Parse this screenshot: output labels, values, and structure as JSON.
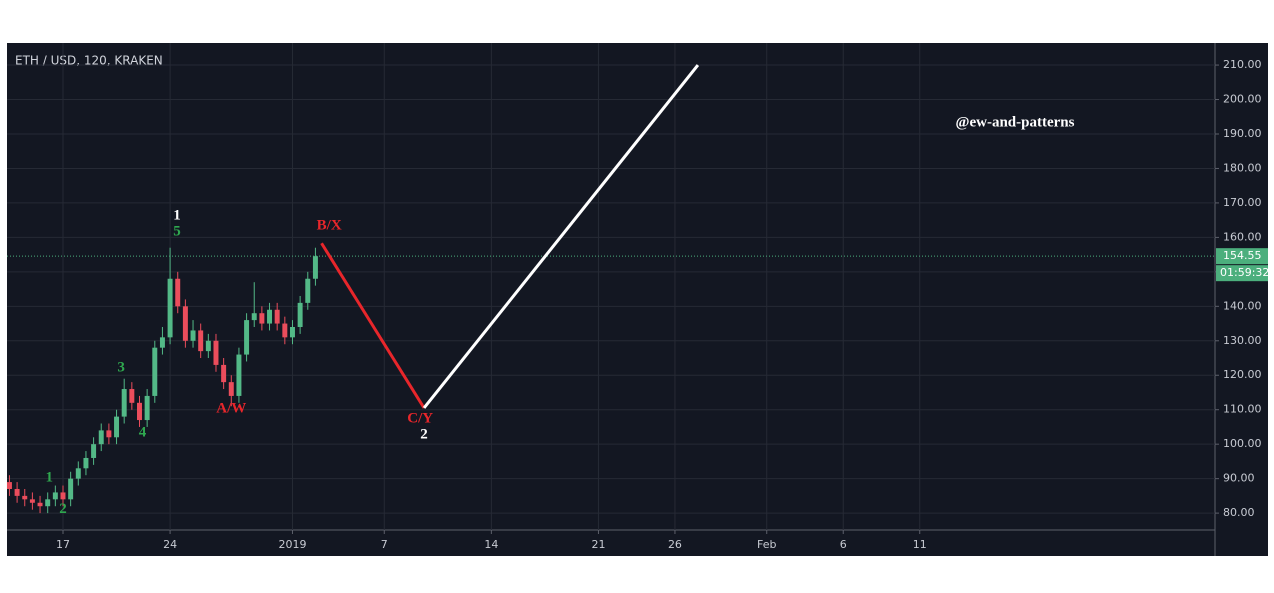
{
  "chart_data": {
    "type": "candlestick",
    "title": "ETH / USD, 120, KRAKEN",
    "watermark": "@ew-and-patterns",
    "xlim": [
      -3.66,
      75.3
    ],
    "ylim": [
      75.1,
      216.4
    ],
    "xticks": [
      {
        "value": 0,
        "label": "17"
      },
      {
        "value": 7,
        "label": "24"
      },
      {
        "value": 15,
        "label": "2019"
      },
      {
        "value": 21,
        "label": "7"
      },
      {
        "value": 28,
        "label": "14"
      },
      {
        "value": 35,
        "label": "21"
      },
      {
        "value": 40,
        "label": "26"
      },
      {
        "value": 46,
        "label": "Feb"
      },
      {
        "value": 51,
        "label": "6"
      },
      {
        "value": 56,
        "label": "11"
      }
    ],
    "yticks": [
      {
        "value": 80,
        "label": "80.00"
      },
      {
        "value": 90,
        "label": "90.00"
      },
      {
        "value": 100,
        "label": "100.00"
      },
      {
        "value": 110,
        "label": "110.00"
      },
      {
        "value": 120,
        "label": "120.00"
      },
      {
        "value": 130,
        "label": "130.00"
      },
      {
        "value": 140,
        "label": "140.00"
      },
      {
        "value": 150,
        "label": "150.00"
      },
      {
        "value": 160,
        "label": "160.00"
      },
      {
        "value": 170,
        "label": "170.00"
      },
      {
        "value": 180,
        "label": "180.00"
      },
      {
        "value": 190,
        "label": "190.00"
      },
      {
        "value": 200,
        "label": "200.00"
      },
      {
        "value": 210,
        "label": "210.00"
      }
    ],
    "grid": true,
    "up_color": "#53b987",
    "down_color": "#eb4d5c",
    "x": [
      -3.5,
      -3,
      -2.5,
      -2,
      -1.5,
      -1,
      -0.5,
      0,
      0.5,
      1,
      1.5,
      2,
      2.5,
      3,
      3.5,
      4,
      4.5,
      5,
      5.5,
      6,
      6.5,
      7,
      7.5,
      8,
      8.5,
      9,
      9.5,
      10,
      10.5,
      11,
      11.5,
      12,
      12.5,
      13,
      13.5,
      14,
      14.5,
      15,
      15.5,
      16,
      16.5
    ],
    "open": [
      89,
      87,
      85,
      84,
      83,
      82,
      84,
      86,
      84,
      90,
      93,
      96,
      100,
      104,
      102,
      108,
      116,
      112,
      107,
      114,
      128,
      131,
      148,
      140,
      130,
      133,
      127,
      130,
      123,
      118,
      114,
      126,
      136,
      138,
      135,
      139,
      135,
      131,
      134,
      141,
      148
    ],
    "high": [
      91,
      89,
      87,
      86,
      85,
      86,
      88,
      88,
      92,
      95,
      98,
      102,
      106,
      106,
      110,
      119,
      118,
      114,
      116,
      130,
      134,
      157,
      150,
      142,
      136,
      135,
      132,
      132,
      125,
      120,
      128,
      138,
      147,
      140,
      141,
      141,
      137,
      136,
      143,
      150,
      157
    ],
    "low": [
      85,
      83,
      82,
      81,
      80,
      80,
      82,
      82,
      82,
      88,
      91,
      94,
      98,
      100,
      100,
      106,
      110,
      105,
      105,
      112,
      126,
      129,
      138,
      128,
      128,
      125,
      125,
      121,
      116,
      111,
      112,
      124,
      134,
      133,
      133,
      133,
      129,
      129,
      132,
      139,
      146
    ],
    "close": [
      87,
      85,
      84,
      83,
      82,
      84,
      86,
      84,
      90,
      93,
      96,
      100,
      104,
      102,
      108,
      116,
      112,
      107,
      114,
      128,
      131,
      148,
      140,
      130,
      133,
      127,
      130,
      123,
      118,
      114,
      126,
      136,
      138,
      135,
      139,
      135,
      131,
      134,
      141,
      148,
      154.55
    ],
    "last_price": {
      "value": 154.55,
      "label": "154.55",
      "timer": "01:59:32",
      "color": "#4caf7d"
    },
    "projection": [
      {
        "name": "B/X-C/Y",
        "color": "#e8262b",
        "x": [
          16.9,
          23.6
        ],
        "y": [
          158.3,
          110.5
        ]
      },
      {
        "name": "C/Y-end",
        "color": "#ffffff",
        "x": [
          23.6,
          41.5
        ],
        "y": [
          110.5,
          210
        ]
      }
    ],
    "annotations": [
      {
        "text": "1",
        "x": 7.45,
        "y": 166.2,
        "color": "#ffffff"
      },
      {
        "text": "5",
        "x": 7.45,
        "y": 161.5,
        "color": "#2fa84f"
      },
      {
        "text": "B/X",
        "x": 17.4,
        "y": 163.3,
        "color": "#e8262b"
      },
      {
        "text": "3",
        "x": 3.8,
        "y": 122.1,
        "color": "#2fa84f"
      },
      {
        "text": "4",
        "x": 5.2,
        "y": 103.2,
        "color": "#2fa84f"
      },
      {
        "text": "A/W",
        "x": 11,
        "y": 110.2,
        "color": "#e8262b"
      },
      {
        "text": "C/Y",
        "x": 23.35,
        "y": 107.3,
        "color": "#e8262b"
      },
      {
        "text": "2",
        "x": 23.6,
        "y": 102.6,
        "color": "#ffffff"
      },
      {
        "text": "1",
        "x": -0.9,
        "y": 90.2,
        "color": "#2fa84f"
      },
      {
        "text": "2",
        "x": 0,
        "y": 81.0,
        "color": "#2fa84f"
      }
    ]
  }
}
